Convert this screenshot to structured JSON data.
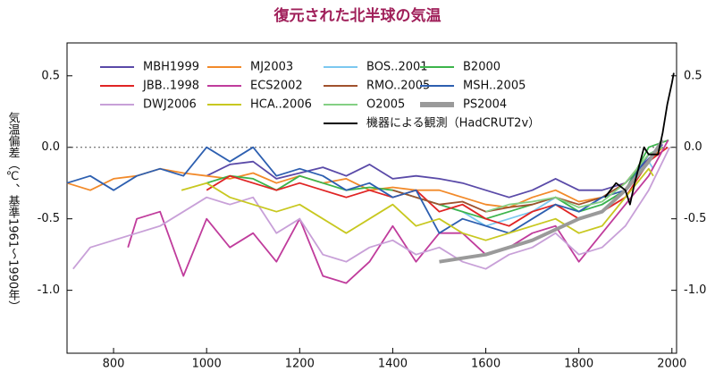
{
  "chart_data": {
    "type": "line",
    "title": "復元された北半球の気温",
    "y_label": "気温偏差（℃、基準1961～1990年）",
    "xlim": [
      700,
      2010
    ],
    "ylim": [
      -1.44,
      0.73
    ],
    "xticks": [
      800,
      1000,
      1200,
      1400,
      1600,
      1800,
      2000
    ],
    "yticks": [
      0.5,
      0.0,
      -0.5,
      -1.0
    ],
    "ytick_labels": [
      "0.5",
      "0.0",
      "-0.5",
      "-1.0"
    ],
    "zero_line": true,
    "series": [
      {
        "name": "MBH1999",
        "color": "#5a4aa8",
        "x": [
          1000,
          1050,
          1100,
          1150,
          1200,
          1250,
          1300,
          1350,
          1400,
          1450,
          1500,
          1550,
          1600,
          1650,
          1700,
          1750,
          1800,
          1850,
          1900,
          1950,
          1980
        ],
        "values": [
          -0.2,
          -0.12,
          -0.1,
          -0.22,
          -0.18,
          -0.14,
          -0.2,
          -0.12,
          -0.22,
          -0.2,
          -0.22,
          -0.25,
          -0.3,
          -0.35,
          -0.3,
          -0.22,
          -0.3,
          -0.3,
          -0.25,
          -0.08,
          0.02
        ]
      },
      {
        "name": "MJ2003",
        "color": "#f28a2a",
        "x": [
          700,
          750,
          800,
          850,
          900,
          950,
          1000,
          1050,
          1100,
          1150,
          1200,
          1250,
          1300,
          1350,
          1400,
          1450,
          1500,
          1550,
          1600,
          1650,
          1700,
          1750,
          1800,
          1850,
          1900,
          1950,
          1980
        ],
        "values": [
          -0.25,
          -0.3,
          -0.22,
          -0.2,
          -0.15,
          -0.18,
          -0.2,
          -0.22,
          -0.18,
          -0.25,
          -0.2,
          -0.25,
          -0.22,
          -0.3,
          -0.28,
          -0.3,
          -0.3,
          -0.35,
          -0.4,
          -0.42,
          -0.35,
          -0.3,
          -0.38,
          -0.35,
          -0.3,
          -0.1,
          0.0
        ]
      },
      {
        "name": "BOS..2001",
        "color": "#7cc8f0",
        "x": [
          1402,
          1450,
          1500,
          1550,
          1600,
          1650,
          1700,
          1750,
          1800,
          1850,
          1900,
          1950,
          1960
        ],
        "values": [
          -0.3,
          -0.35,
          -0.4,
          -0.45,
          -0.55,
          -0.5,
          -0.45,
          -0.35,
          -0.45,
          -0.4,
          -0.3,
          -0.1,
          -0.15
        ]
      },
      {
        "name": "B2000",
        "color": "#3cb44b",
        "x": [
          1000,
          1050,
          1100,
          1150,
          1200,
          1250,
          1300,
          1350,
          1400,
          1450,
          1500,
          1550,
          1600,
          1650,
          1700,
          1750,
          1800,
          1850,
          1900,
          1950,
          1993
        ],
        "values": [
          -0.25,
          -0.2,
          -0.22,
          -0.3,
          -0.2,
          -0.25,
          -0.3,
          -0.28,
          -0.3,
          -0.35,
          -0.4,
          -0.45,
          -0.5,
          -0.45,
          -0.4,
          -0.35,
          -0.45,
          -0.4,
          -0.3,
          0.0,
          0.05
        ]
      },
      {
        "name": "JBB..1998",
        "color": "#e02424",
        "x": [
          1000,
          1050,
          1100,
          1150,
          1200,
          1250,
          1300,
          1350,
          1400,
          1450,
          1500,
          1550,
          1600,
          1650,
          1700,
          1750,
          1800,
          1850,
          1900,
          1950,
          1991
        ],
        "values": [
          -0.3,
          -0.2,
          -0.25,
          -0.3,
          -0.25,
          -0.3,
          -0.35,
          -0.3,
          -0.35,
          -0.3,
          -0.45,
          -0.4,
          -0.5,
          -0.55,
          -0.45,
          -0.4,
          -0.5,
          -0.45,
          -0.35,
          -0.1,
          0.0
        ]
      },
      {
        "name": "ECS2002",
        "color": "#c03c9c",
        "x": [
          831,
          850,
          900,
          950,
          1000,
          1050,
          1100,
          1150,
          1200,
          1250,
          1300,
          1350,
          1400,
          1450,
          1500,
          1550,
          1600,
          1650,
          1700,
          1750,
          1800,
          1850,
          1900,
          1950,
          1992
        ],
        "values": [
          -0.7,
          -0.5,
          -0.45,
          -0.9,
          -0.5,
          -0.7,
          -0.6,
          -0.8,
          -0.5,
          -0.9,
          -0.95,
          -0.8,
          -0.55,
          -0.8,
          -0.6,
          -0.6,
          -0.75,
          -0.7,
          -0.6,
          -0.55,
          -0.8,
          -0.6,
          -0.4,
          -0.2,
          0.05
        ]
      },
      {
        "name": "RMO..2005",
        "color": "#a0522d",
        "x": [
          1400,
          1450,
          1500,
          1550,
          1600,
          1650,
          1700,
          1750,
          1800,
          1850,
          1900,
          1950,
          1980
        ],
        "values": [
          -0.3,
          -0.35,
          -0.4,
          -0.38,
          -0.45,
          -0.42,
          -0.4,
          -0.35,
          -0.4,
          -0.35,
          -0.25,
          -0.05,
          0.0
        ]
      },
      {
        "name": "MSH..2005",
        "color": "#2d5fb0",
        "x": [
          700,
          750,
          800,
          850,
          900,
          950,
          1000,
          1050,
          1100,
          1150,
          1200,
          1250,
          1300,
          1350,
          1400,
          1450,
          1500,
          1550,
          1600,
          1650,
          1700,
          1750,
          1800,
          1850,
          1900,
          1950,
          1979
        ],
        "values": [
          -0.25,
          -0.2,
          -0.3,
          -0.2,
          -0.15,
          -0.2,
          0.0,
          -0.1,
          0.0,
          -0.2,
          -0.15,
          -0.2,
          -0.3,
          -0.25,
          -0.35,
          -0.3,
          -0.6,
          -0.5,
          -0.55,
          -0.6,
          -0.5,
          -0.4,
          -0.45,
          -0.35,
          -0.3,
          -0.05,
          0.0
        ]
      },
      {
        "name": "DWJ2006",
        "color": "#c8a0d8",
        "x": [
          713,
          750,
          800,
          850,
          900,
          950,
          1000,
          1050,
          1100,
          1150,
          1200,
          1250,
          1300,
          1350,
          1400,
          1450,
          1500,
          1550,
          1600,
          1650,
          1700,
          1750,
          1800,
          1850,
          1900,
          1950,
          1995
        ],
        "values": [
          -0.85,
          -0.7,
          -0.65,
          -0.6,
          -0.55,
          -0.45,
          -0.35,
          -0.4,
          -0.35,
          -0.6,
          -0.5,
          -0.75,
          -0.8,
          -0.7,
          -0.65,
          -0.75,
          -0.7,
          -0.8,
          -0.85,
          -0.75,
          -0.7,
          -0.6,
          -0.75,
          -0.7,
          -0.55,
          -0.3,
          0.0
        ]
      },
      {
        "name": "HCA..2006",
        "color": "#c8c820",
        "x": [
          946,
          1000,
          1050,
          1100,
          1150,
          1200,
          1250,
          1300,
          1350,
          1400,
          1450,
          1500,
          1550,
          1600,
          1650,
          1700,
          1750,
          1800,
          1850,
          1900,
          1950,
          1960
        ],
        "values": [
          -0.3,
          -0.25,
          -0.35,
          -0.4,
          -0.45,
          -0.4,
          -0.5,
          -0.6,
          -0.5,
          -0.4,
          -0.55,
          -0.5,
          -0.6,
          -0.65,
          -0.6,
          -0.55,
          -0.5,
          -0.6,
          -0.55,
          -0.35,
          -0.15,
          -0.2
        ]
      },
      {
        "name": "O2005",
        "color": "#84d084",
        "x": [
          1600,
          1650,
          1700,
          1750,
          1800,
          1850,
          1900,
          1950,
          1980
        ],
        "values": [
          -0.45,
          -0.4,
          -0.38,
          -0.35,
          -0.42,
          -0.38,
          -0.25,
          -0.05,
          0.0
        ]
      },
      {
        "name": "PS2004",
        "color": "#9a9a9a",
        "width": 4,
        "x": [
          1500,
          1600,
          1700,
          1800,
          1850,
          1900,
          1950,
          1980
        ],
        "values": [
          -0.8,
          -0.75,
          -0.65,
          -0.5,
          -0.45,
          -0.3,
          -0.1,
          0.05
        ]
      },
      {
        "name": "機器による観測（HadCRUT2v）",
        "color": "#000000",
        "x": [
          1856,
          1880,
          1900,
          1910,
          1920,
          1940,
          1950,
          1960,
          1970,
          1980,
          1990,
          2000,
          2004
        ],
        "values": [
          -0.35,
          -0.25,
          -0.3,
          -0.4,
          -0.25,
          0.0,
          -0.05,
          -0.05,
          -0.05,
          0.1,
          0.3,
          0.45,
          0.52
        ]
      }
    ]
  }
}
